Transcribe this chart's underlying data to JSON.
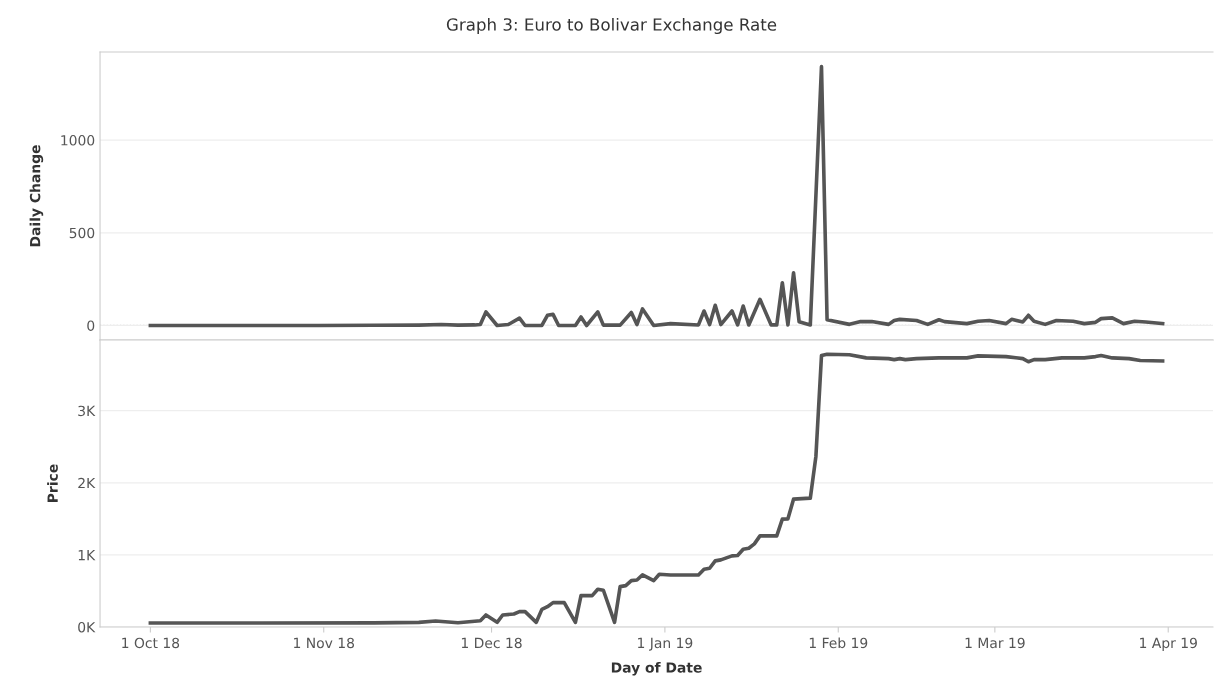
{
  "chart_data": [
    {
      "type": "line",
      "title": "Graph 3: Euro to Bolivar Exchange Rate",
      "ylabel": "Daily Change",
      "xlim": [
        "2018-09-22",
        "2019-04-09"
      ],
      "ylim": [
        -78,
        1475
      ],
      "yticks": [
        0,
        500,
        1000
      ],
      "tick_labels": "y",
      "grid": "y",
      "line_style": "solid",
      "ref_lines": [
        {
          "axis": "y",
          "value": 0,
          "color": "#c8c8c8",
          "line_style": "dotted"
        }
      ],
      "x": [
        "2018-10-01",
        "2018-10-11",
        "2018-10-21",
        "2018-10-31",
        "2018-11-10",
        "2018-11-18",
        "2018-11-22",
        "2018-11-25",
        "2018-11-28",
        "2018-11-29",
        "2018-11-30",
        "2018-12-02",
        "2018-12-04",
        "2018-12-06",
        "2018-12-07",
        "2018-12-10",
        "2018-12-11",
        "2018-12-12",
        "2018-12-13",
        "2018-12-16",
        "2018-12-17",
        "2018-12-18",
        "2018-12-20",
        "2018-12-21",
        "2018-12-24",
        "2018-12-26",
        "2018-12-27",
        "2018-12-28",
        "2018-12-30",
        "2019-01-02",
        "2019-01-07",
        "2019-01-08",
        "2019-01-09",
        "2019-01-10",
        "2019-01-11",
        "2019-01-13",
        "2019-01-14",
        "2019-01-15",
        "2019-01-16",
        "2019-01-18",
        "2019-01-20",
        "2019-01-21",
        "2019-01-22",
        "2019-01-23",
        "2019-01-24",
        "2019-01-25",
        "2019-01-27",
        "2019-01-29",
        "2019-01-30",
        "2019-02-03",
        "2019-02-05",
        "2019-02-07",
        "2019-02-10",
        "2019-02-11",
        "2019-02-12",
        "2019-02-15",
        "2019-02-17",
        "2019-02-19",
        "2019-02-20",
        "2019-02-24",
        "2019-02-26",
        "2019-02-28",
        "2019-03-03",
        "2019-03-04",
        "2019-03-06",
        "2019-03-07",
        "2019-03-08",
        "2019-03-10",
        "2019-03-12",
        "2019-03-15",
        "2019-03-17",
        "2019-03-19",
        "2019-03-20",
        "2019-03-22",
        "2019-03-24",
        "2019-03-26",
        "2019-03-28",
        "2019-03-31"
      ],
      "series": [
        {
          "color": "#555555",
          "values": [
            0,
            0,
            0,
            0,
            1,
            2,
            5,
            2,
            3,
            5,
            73,
            0,
            5,
            40,
            0,
            0,
            55,
            60,
            0,
            0,
            46,
            0,
            73,
            2,
            2,
            70,
            5,
            89,
            0,
            10,
            3,
            78,
            5,
            109,
            5,
            78,
            3,
            105,
            3,
            141,
            3,
            3,
            230,
            3,
            284,
            20,
            3,
            1396,
            31,
            6,
            21,
            21,
            6,
            27,
            33,
            27,
            6,
            31,
            21,
            10,
            23,
            27,
            10,
            33,
            19,
            55,
            23,
            6,
            27,
            23,
            10,
            17,
            37,
            41,
            10,
            23,
            19,
            10
          ]
        }
      ]
    },
    {
      "type": "line",
      "ylabel": "Price",
      "xlabel": "Day of Date",
      "xlim": [
        "2018-09-22",
        "2019-04-09"
      ],
      "ylim": [
        0,
        3980
      ],
      "yticks": [
        {
          "value": 0,
          "label": "0K"
        },
        {
          "value": 1000,
          "label": "1K"
        },
        {
          "value": 2000,
          "label": "2K"
        },
        {
          "value": 3000,
          "label": "3K"
        }
      ],
      "xticks": [
        {
          "value": "2018-10-01",
          "label": "1 Oct 18"
        },
        {
          "value": "2018-11-01",
          "label": "1 Nov 18"
        },
        {
          "value": "2018-12-01",
          "label": "1 Dec 18"
        },
        {
          "value": "2019-01-01",
          "label": "1 Jan 19"
        },
        {
          "value": "2019-02-01",
          "label": "1 Feb 19"
        },
        {
          "value": "2019-03-01",
          "label": "1 Mar 19"
        },
        {
          "value": "2019-04-01",
          "label": "1 Apr 19"
        }
      ],
      "grid": "y",
      "line_style": "solid",
      "x": [
        "2018-10-01",
        "2018-10-21",
        "2018-11-10",
        "2018-11-18",
        "2018-11-21",
        "2018-11-25",
        "2018-11-29",
        "2018-11-30",
        "2018-12-02",
        "2018-12-03",
        "2018-12-05",
        "2018-12-06",
        "2018-12-07",
        "2018-12-09",
        "2018-12-10",
        "2018-12-11",
        "2018-12-12",
        "2018-12-14",
        "2018-12-16",
        "2018-12-17",
        "2018-12-19",
        "2018-12-20",
        "2018-12-21",
        "2018-12-23",
        "2018-12-24",
        "2018-12-25",
        "2018-12-26",
        "2018-12-27",
        "2018-12-28",
        "2018-12-30",
        "2018-12-31",
        "2019-01-02",
        "2019-01-07",
        "2019-01-08",
        "2019-01-09",
        "2019-01-10",
        "2019-01-11",
        "2019-01-13",
        "2019-01-14",
        "2019-01-15",
        "2019-01-16",
        "2019-01-17",
        "2019-01-18",
        "2019-01-21",
        "2019-01-22",
        "2019-01-23",
        "2019-01-24",
        "2019-01-27",
        "2019-01-28",
        "2019-01-29",
        "2019-01-30",
        "2019-02-03",
        "2019-02-06",
        "2019-02-10",
        "2019-02-11",
        "2019-02-12",
        "2019-02-13",
        "2019-02-15",
        "2019-02-19",
        "2019-02-24",
        "2019-02-26",
        "2019-03-03",
        "2019-03-06",
        "2019-03-07",
        "2019-03-08",
        "2019-03-10",
        "2019-03-13",
        "2019-03-17",
        "2019-03-19",
        "2019-03-20",
        "2019-03-22",
        "2019-03-25",
        "2019-03-27",
        "2019-03-31"
      ],
      "series": [
        {
          "color": "#555555",
          "values": [
            55,
            55,
            58,
            65,
            83,
            60,
            88,
            167,
            65,
            167,
            181,
            213,
            213,
            65,
            245,
            282,
            338,
            338,
            65,
            435,
            435,
            523,
            510,
            65,
            560,
            574,
            643,
            652,
            722,
            643,
            731,
            722,
            722,
            801,
            815,
            917,
            931,
            986,
            991,
            1079,
            1093,
            1153,
            1264,
            1264,
            1496,
            1500,
            1773,
            1787,
            2366,
            3764,
            3782,
            3775,
            3732,
            3722,
            3708,
            3722,
            3708,
            3722,
            3732,
            3732,
            3760,
            3750,
            3722,
            3678,
            3708,
            3708,
            3732,
            3732,
            3750,
            3765,
            3732,
            3722,
            3695,
            3690
          ]
        }
      ]
    }
  ]
}
